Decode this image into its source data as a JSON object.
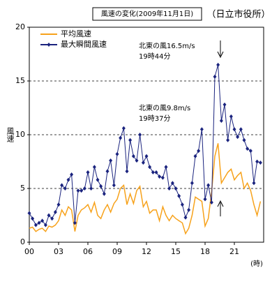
{
  "chart_data": {
    "type": "line",
    "title": "風速の変化(2009年11月1日)",
    "subtitle": "（日立市役所）",
    "y_label": "風速",
    "x_label": "(時)",
    "annotations": [
      "北東の風16.5m/s",
      "19時44分",
      "北東の風9.8m/s",
      "19時37分"
    ],
    "x": [
      0,
      0.33,
      0.67,
      1,
      1.33,
      1.67,
      2,
      2.33,
      2.67,
      3,
      3.33,
      3.67,
      4,
      4.33,
      4.67,
      5,
      5.33,
      5.67,
      6,
      6.33,
      6.67,
      7,
      7.33,
      7.67,
      8,
      8.33,
      8.67,
      9,
      9.33,
      9.67,
      10,
      10.33,
      10.67,
      11,
      11.33,
      11.67,
      12,
      12.33,
      12.67,
      13,
      13.33,
      13.67,
      14,
      14.33,
      14.67,
      15,
      15.33,
      15.67,
      16,
      16.33,
      16.67,
      17,
      17.33,
      17.67,
      18,
      18.33,
      18.67,
      19,
      19.33,
      19.67,
      20,
      20.33,
      20.67,
      21,
      21.33,
      21.67,
      22,
      22.33,
      22.67,
      23,
      23.33,
      23.67
    ],
    "series": [
      {
        "name": "平均風速",
        "color": "#f7a21b",
        "marker": false,
        "values": [
          1.3,
          1.4,
          1.0,
          1.2,
          1.3,
          1.0,
          1.5,
          1.4,
          1.6,
          2.0,
          3.0,
          2.5,
          3.3,
          3.0,
          1.0,
          2.5,
          3.0,
          3.2,
          3.5,
          2.8,
          3.7,
          2.5,
          2.2,
          3.0,
          3.5,
          2.8,
          3.6,
          4.0,
          5.0,
          5.3,
          3.5,
          4.5,
          3.6,
          4.8,
          5.2,
          3.3,
          3.8,
          2.7,
          3.0,
          3.0,
          2.0,
          3.3,
          2.5,
          2.0,
          2.5,
          2.2,
          2.0,
          1.8,
          0.8,
          1.3,
          2.5,
          4.2,
          4.0,
          3.8,
          1.5,
          2.2,
          4.7,
          8.0,
          9.2,
          5.5,
          6.0,
          6.5,
          6.8,
          5.8,
          6.2,
          6.5,
          5.0,
          5.5,
          4.8,
          3.5,
          2.5,
          3.8
        ]
      },
      {
        "name": "最大瞬間風速",
        "color": "#1a237e",
        "marker": true,
        "values": [
          2.7,
          2.2,
          1.6,
          1.8,
          2.0,
          1.6,
          2.5,
          2.2,
          2.8,
          3.5,
          5.3,
          5.0,
          5.8,
          6.3,
          1.8,
          4.8,
          4.8,
          5.0,
          6.5,
          5.0,
          7.0,
          5.8,
          5.2,
          4.5,
          6.6,
          7.6,
          5.3,
          8.2,
          9.7,
          10.6,
          6.6,
          9.5,
          8.0,
          7.6,
          10.0,
          7.4,
          8.0,
          7.0,
          6.5,
          6.5,
          6.1,
          6.0,
          7.0,
          5.0,
          5.5,
          5.0,
          4.3,
          3.5,
          2.3,
          3.0,
          5.5,
          8.0,
          8.5,
          10.5,
          4.0,
          5.3,
          3.7,
          15.4,
          16.5,
          11.3,
          12.8,
          9.5,
          11.7,
          10.5,
          9.8,
          10.5,
          9.5,
          8.7,
          8.5,
          5.5,
          7.5,
          7.4
        ]
      }
    ],
    "xlim": [
      0,
      24
    ],
    "ylim": [
      0,
      20
    ],
    "xticks": [
      {
        "value": 0,
        "label": "00"
      },
      {
        "value": 3,
        "label": "03"
      },
      {
        "value": 6,
        "label": "06"
      },
      {
        "value": 9,
        "label": "09"
      },
      {
        "value": 12,
        "label": "12"
      },
      {
        "value": 15,
        "label": "15"
      },
      {
        "value": 18,
        "label": "18"
      },
      {
        "value": 21,
        "label": "21"
      }
    ],
    "yticks": [
      0,
      5,
      10,
      15,
      20
    ],
    "grid": true
  }
}
